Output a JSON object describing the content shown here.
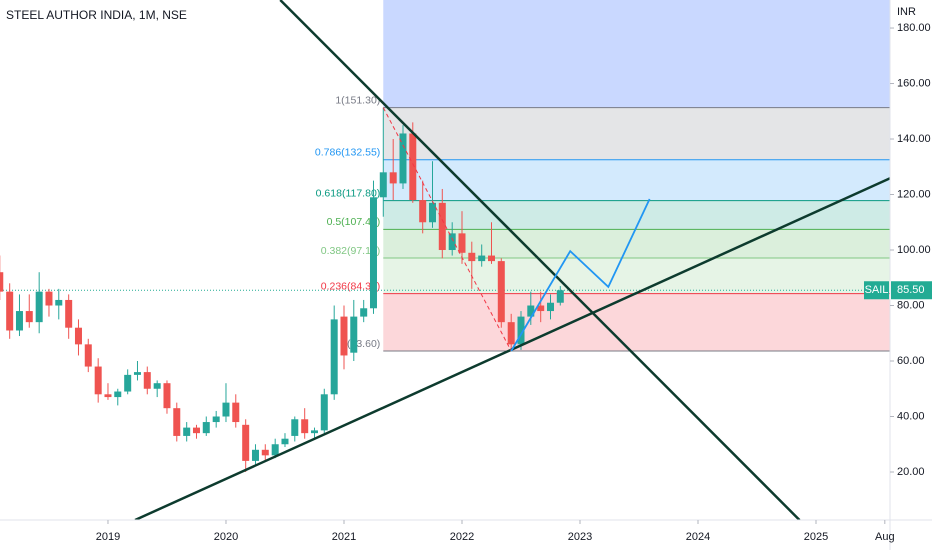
{
  "chart_data": {
    "type": "candlestick",
    "title": "STEEL AUTHOR INDIA, 1M, NSE",
    "axis_unit": "INR",
    "up_color": "#26a69a",
    "down_color": "#ef5350",
    "xlim": [
      2018.085,
      2025.627
    ],
    "ylim": [
      2.7,
      190.1
    ],
    "xticks": [
      2019,
      2020,
      2021,
      2022,
      2023,
      2024,
      2025,
      {
        "value": 2025.583,
        "label": "Aug"
      }
    ],
    "yticks": [
      {
        "value": 20,
        "label": "20.00"
      },
      {
        "value": 40,
        "label": "40.00"
      },
      {
        "value": 60,
        "label": "60.00"
      },
      {
        "value": 80,
        "label": "80.00"
      },
      {
        "value": 100,
        "label": "100.00"
      },
      {
        "value": 120,
        "label": "120.00"
      },
      {
        "value": 140,
        "label": "140.00"
      },
      {
        "value": 160,
        "label": "160.00"
      },
      {
        "value": 180,
        "label": "180.00"
      }
    ],
    "candles": {
      "x": [
        2018.083,
        2018.167,
        2018.25,
        2018.333,
        2018.417,
        2018.5,
        2018.583,
        2018.667,
        2018.75,
        2018.833,
        2018.917,
        2019,
        2019.083,
        2019.167,
        2019.25,
        2019.333,
        2019.417,
        2019.5,
        2019.583,
        2019.667,
        2019.75,
        2019.833,
        2019.917,
        2020,
        2020.083,
        2020.167,
        2020.25,
        2020.333,
        2020.417,
        2020.5,
        2020.583,
        2020.667,
        2020.75,
        2020.833,
        2020.917,
        2021,
        2021.083,
        2021.167,
        2021.25,
        2021.333,
        2021.417,
        2021.5,
        2021.583,
        2021.667,
        2021.75,
        2021.833,
        2021.917,
        2022,
        2022.083,
        2022.167,
        2022.25,
        2022.333,
        2022.417,
        2022.5,
        2022.583,
        2022.667,
        2022.75,
        2022.833
      ],
      "open": [
        92,
        85,
        71,
        78,
        74,
        85,
        80,
        82,
        72,
        66,
        58,
        48,
        47,
        49,
        55,
        56,
        50,
        52,
        43,
        33,
        36,
        34,
        38,
        40,
        45,
        37,
        24,
        28,
        26,
        30,
        33,
        39,
        34,
        35,
        48,
        76,
        63,
        76,
        79,
        119,
        128,
        124,
        142,
        118,
        110,
        117,
        100,
        106,
        99,
        96,
        98,
        96,
        74,
        66,
        76,
        80,
        78,
        81
      ],
      "high": [
        98,
        88,
        84,
        84,
        92,
        86,
        86,
        84,
        75,
        68,
        61,
        52,
        50,
        57,
        60,
        58,
        53,
        53,
        45,
        38,
        37,
        40,
        42,
        52,
        48,
        39,
        30,
        30,
        32,
        34,
        40,
        43,
        36,
        50,
        80,
        80,
        82,
        82,
        125,
        151.3,
        140,
        145,
        146,
        125,
        132,
        122,
        110,
        114,
        103,
        102,
        110,
        97,
        77,
        78,
        85,
        85,
        84,
        87
      ],
      "low": [
        82,
        68,
        69,
        72,
        70,
        76,
        75,
        68,
        62,
        56,
        45,
        46,
        44,
        48,
        53,
        48,
        47,
        41,
        31,
        31,
        32,
        33,
        36,
        38,
        36,
        20,
        22,
        24,
        25,
        29,
        31,
        32,
        32,
        34,
        46,
        57,
        60,
        74,
        77,
        112,
        118,
        122,
        117,
        106,
        108,
        97,
        98,
        95,
        86,
        94,
        95,
        72,
        63.6,
        64,
        73,
        74,
        75,
        80
      ],
      "close": [
        85,
        71,
        78,
        74,
        85,
        80,
        82,
        72,
        66,
        58,
        48,
        47,
        49,
        55,
        56,
        50,
        52,
        43,
        33,
        36,
        34,
        38,
        40,
        45,
        38,
        24,
        28,
        26,
        30,
        32,
        39,
        34,
        35,
        48,
        75,
        62,
        76,
        79,
        119,
        128,
        124,
        142,
        118,
        110,
        117,
        100,
        106,
        99,
        96,
        98,
        96,
        74,
        66,
        76,
        80,
        78,
        81,
        85.5
      ]
    },
    "fib": {
      "x_start": 2021.333,
      "top_band_color": "#2962ff",
      "levels": [
        {
          "value": 151.3,
          "label": "1(151.30)",
          "color": "#787b86"
        },
        {
          "value": 132.55,
          "label": "0.786(132.55)",
          "color": "#2196f3"
        },
        {
          "value": 117.8,
          "label": "0.618(117.80)",
          "color": "#089981"
        },
        {
          "value": 107.45,
          "label": "0.5(107.45)",
          "color": "#4caf50"
        },
        {
          "value": 97.1,
          "label": "0.382(97.10)",
          "color": "#81c784"
        },
        {
          "value": 84.3,
          "label": "0.236(84.30)",
          "color": "#f23645"
        },
        {
          "value": 63.6,
          "label": "0(63.60)",
          "color": "#787b86"
        }
      ]
    },
    "lines": [
      {
        "x": [
          2020.46,
          2024.86
        ],
        "y": [
          190.1,
          2.7
        ],
        "color": "#0d3b2e",
        "dashed": false,
        "width": 2.5
      },
      {
        "x": [
          2019.23,
          2025.63
        ],
        "y": [
          2.7,
          125.9
        ],
        "color": "#0d3b2e",
        "dashed": false,
        "width": 2.5
      },
      {
        "x": [
          2021.333,
          2022.417
        ],
        "y": [
          151.3,
          63.6
        ],
        "color": "#f23645",
        "dashed": true,
        "width": 1
      },
      {
        "x": [
          2022.417,
          2022.917,
          2023.24,
          2023.59
        ],
        "y": [
          63.6,
          99.6,
          86.7,
          118.4
        ],
        "color": "#2196f3",
        "dashed": false,
        "width": 1.8
      }
    ],
    "price": {
      "symbol": "SAIL",
      "value": 85.5,
      "label": "85.50",
      "color": "#22ab94"
    }
  }
}
